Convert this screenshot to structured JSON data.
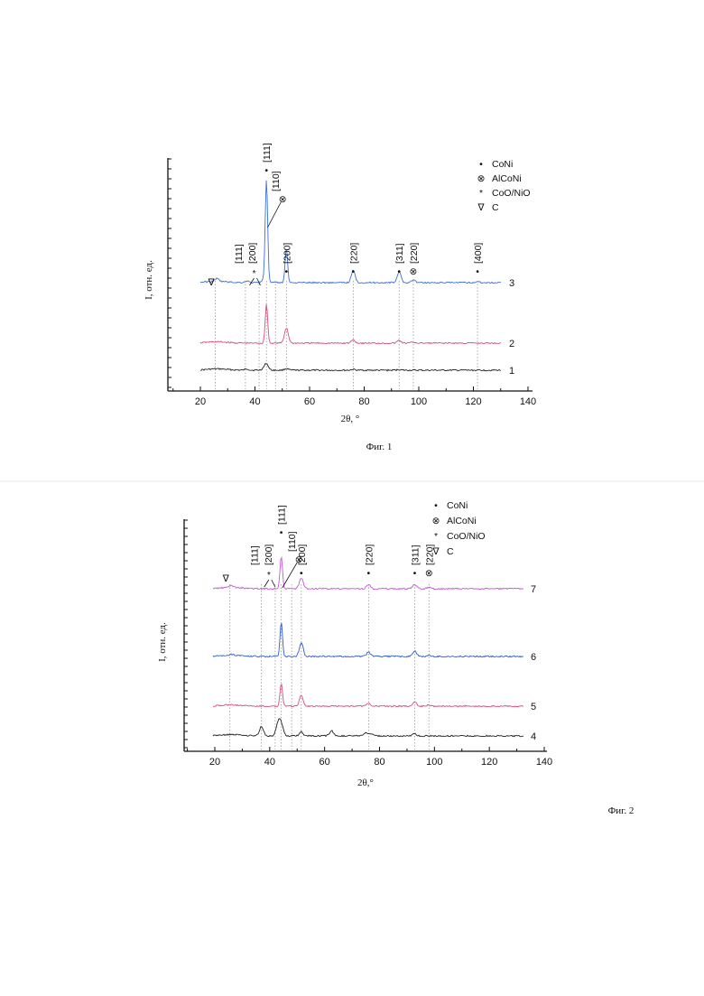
{
  "chart_data": [
    {
      "type": "line",
      "caption": "Фиг. 1",
      "xlabel": "2θ, °",
      "ylabel": "I, отн. ед.",
      "xlim": [
        10,
        140
      ],
      "xticks": [
        20,
        40,
        60,
        80,
        100,
        120,
        140
      ],
      "legend_position": "top-right",
      "legend": [
        {
          "symbol": "•",
          "label": "CoNi"
        },
        {
          "symbol": "⊗",
          "label": "AlCoNi"
        },
        {
          "symbol": "*",
          "label": "CoO/NiO"
        },
        {
          "symbol": "∇",
          "label": "C"
        }
      ],
      "series": [
        {
          "name": "1",
          "color": "#222222",
          "peaks": [
            {
              "x": 44.2,
              "h": 0.06
            },
            {
              "x": 37.0,
              "h": 0.012
            },
            {
              "x": 43.0,
              "h": 0.01
            },
            {
              "x": 51.5,
              "h": 0.015
            },
            {
              "x": 76.0,
              "h": 0.008
            },
            {
              "x": 92.8,
              "h": 0.006
            }
          ]
        },
        {
          "name": "2",
          "color": "#d4507a",
          "peaks": [
            {
              "x": 44.2,
              "h": 0.36
            },
            {
              "x": 51.5,
              "h": 0.14
            },
            {
              "x": 76.0,
              "h": 0.03
            },
            {
              "x": 92.8,
              "h": 0.025
            },
            {
              "x": 98.0,
              "h": 0.01
            }
          ]
        },
        {
          "name": "3",
          "color": "#3c6fd8",
          "peaks": [
            {
              "x": 26.0,
              "h": 0.025
            },
            {
              "x": 37.0,
              "h": 0.015
            },
            {
              "x": 43.0,
              "h": 0.02
            },
            {
              "x": 44.2,
              "h": 0.95
            },
            {
              "x": 51.5,
              "h": 0.32
            },
            {
              "x": 76.0,
              "h": 0.11
            },
            {
              "x": 92.8,
              "h": 0.1
            },
            {
              "x": 98.0,
              "h": 0.025
            },
            {
              "x": 121.5,
              "h": 0.01
            }
          ]
        }
      ],
      "annotations": [
        {
          "text": "∇",
          "x": 25.5
        },
        {
          "text": "[111]",
          "x": 36.5
        },
        {
          "text": "*",
          "x": 40.0
        },
        {
          "text": "[200]",
          "x": 41.5
        },
        {
          "text": "[111]",
          "x": 44.2,
          "marker": "•"
        },
        {
          "text": "[110]",
          "x": 47.5,
          "marker": "⊗"
        },
        {
          "text": "[200]",
          "x": 51.5,
          "marker": "•"
        },
        {
          "text": "[220]",
          "x": 76.0,
          "marker": "•"
        },
        {
          "text": "[311]",
          "x": 92.8,
          "marker": "•"
        },
        {
          "text": "[220]",
          "x": 98.0,
          "marker": "⊗"
        },
        {
          "text": "[400]",
          "x": 121.5,
          "marker": "•"
        }
      ]
    },
    {
      "type": "line",
      "caption": "Фиг. 2",
      "xlabel": "2θ,°",
      "ylabel": "I, отн. ед.",
      "xlim": [
        10,
        140
      ],
      "xticks": [
        20,
        40,
        60,
        80,
        100,
        120,
        140
      ],
      "legend_position": "top-right",
      "legend": [
        {
          "symbol": "•",
          "label": "CoNi"
        },
        {
          "symbol": "⊗",
          "label": "AlCoNi"
        },
        {
          "symbol": "*",
          "label": "CoO/NiO"
        },
        {
          "symbol": "∇",
          "label": "C"
        }
      ],
      "series": [
        {
          "name": "4",
          "color": "#222222",
          "peaks": [
            {
              "x": 37.0,
              "h": 0.09
            },
            {
              "x": 43.0,
              "h": 0.12
            },
            {
              "x": 44.2,
              "h": 0.11
            },
            {
              "x": 51.5,
              "h": 0.04
            },
            {
              "x": 62.5,
              "h": 0.05
            },
            {
              "x": 75.0,
              "h": 0.025
            },
            {
              "x": 77.0,
              "h": 0.02
            },
            {
              "x": 92.8,
              "h": 0.02
            }
          ]
        },
        {
          "name": "5",
          "color": "#d4507a",
          "peaks": [
            {
              "x": 44.2,
              "h": 0.22
            },
            {
              "x": 51.5,
              "h": 0.1
            },
            {
              "x": 76.0,
              "h": 0.03
            },
            {
              "x": 92.8,
              "h": 0.04
            },
            {
              "x": 98.0,
              "h": 0.01
            }
          ]
        },
        {
          "name": "6",
          "color": "#2f5cc8",
          "peaks": [
            {
              "x": 26.0,
              "h": 0.01
            },
            {
              "x": 44.2,
              "h": 0.32
            },
            {
              "x": 51.5,
              "h": 0.13
            },
            {
              "x": 76.0,
              "h": 0.04
            },
            {
              "x": 92.8,
              "h": 0.05
            },
            {
              "x": 98.0,
              "h": 0.01
            }
          ]
        },
        {
          "name": "7",
          "color": "#c25ad0",
          "peaks": [
            {
              "x": 26.0,
              "h": 0.02
            },
            {
              "x": 44.2,
              "h": 0.3
            },
            {
              "x": 51.5,
              "h": 0.1
            },
            {
              "x": 76.0,
              "h": 0.04
            },
            {
              "x": 92.8,
              "h": 0.04
            },
            {
              "x": 98.0,
              "h": 0.015
            }
          ]
        }
      ],
      "annotations": [
        {
          "text": "∇",
          "x": 25.5
        },
        {
          "text": "[111]",
          "x": 37.0
        },
        {
          "text": "*",
          "x": 40.0
        },
        {
          "text": "[200]",
          "x": 42.0
        },
        {
          "text": "[111]",
          "x": 44.2,
          "marker": "•"
        },
        {
          "text": "[110]",
          "x": 48.0,
          "marker": "⊗"
        },
        {
          "text": "[200]",
          "x": 51.5,
          "marker": "•"
        },
        {
          "text": "[220]",
          "x": 76.0,
          "marker": "•"
        },
        {
          "text": "[311]",
          "x": 92.8,
          "marker": "•"
        },
        {
          "text": "[220]",
          "x": 98.0,
          "marker": "⊗"
        }
      ]
    }
  ]
}
